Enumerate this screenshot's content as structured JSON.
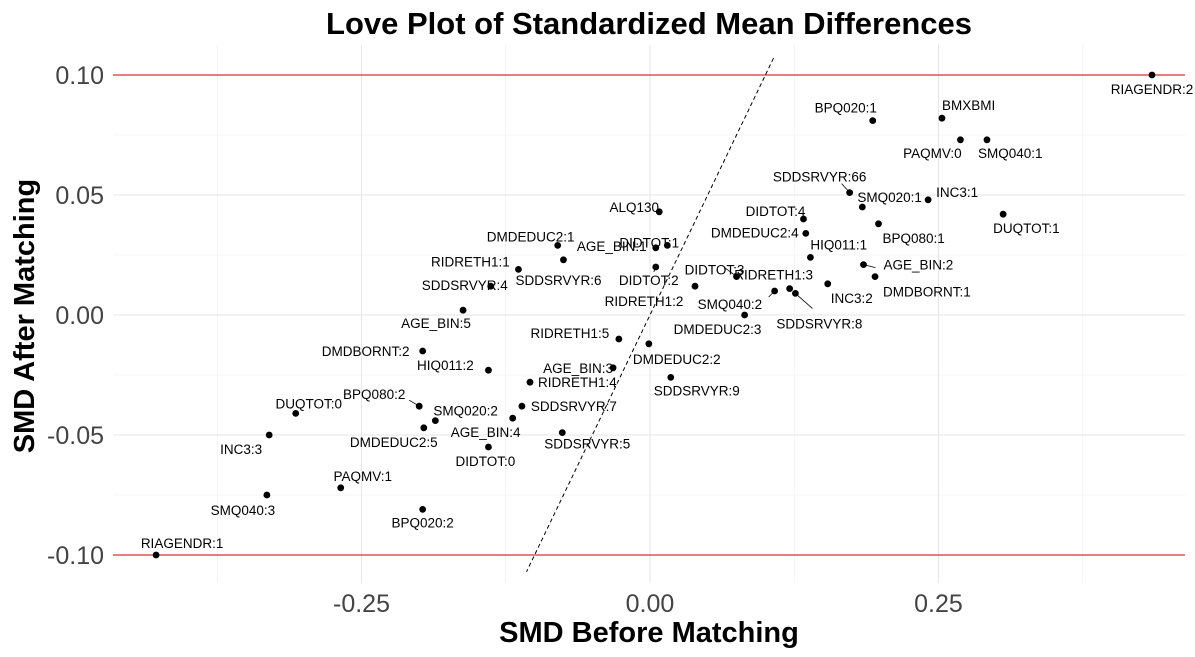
{
  "chart_data": {
    "type": "scatter",
    "title": "Love Plot of Standardized Mean Differences",
    "xlabel": "SMD Before Matching",
    "ylabel": "SMD After Matching",
    "xlim": [
      -0.46,
      0.465
    ],
    "ylim": [
      -0.107,
      0.107
    ],
    "x_ticks": [
      -0.25,
      0.0,
      0.25
    ],
    "x_tick_labels": [
      "-0.25",
      "0.00",
      "0.25"
    ],
    "y_ticks": [
      -0.1,
      -0.05,
      0.0,
      0.05,
      0.1
    ],
    "y_tick_labels": [
      "-0.10",
      "-0.05",
      "0.00",
      "0.05",
      "0.10"
    ],
    "grid": true,
    "reference_lines": {
      "horizontal": [
        0.1,
        -0.1
      ],
      "horizontal_color": "#cc0000",
      "diagonal": "y = x",
      "diagonal_style": "dashed"
    },
    "point_color": "#000000",
    "points": [
      {
        "label": "RIAGENDR:2",
        "x": 0.435,
        "y": 0.1
      },
      {
        "label": "BPQ020:1",
        "x": 0.193,
        "y": 0.081
      },
      {
        "label": "BMXBMI",
        "x": 0.253,
        "y": 0.082
      },
      {
        "label": "PAQMV:0",
        "x": 0.269,
        "y": 0.073
      },
      {
        "label": "SMQ040:1",
        "x": 0.292,
        "y": 0.073
      },
      {
        "label": "SDDSRVYR:66",
        "x": 0.173,
        "y": 0.051
      },
      {
        "label": "INC3:1",
        "x": 0.241,
        "y": 0.048
      },
      {
        "label": "SMQ020:1",
        "x": 0.184,
        "y": 0.045
      },
      {
        "label": "DUQTOT:1",
        "x": 0.306,
        "y": 0.042
      },
      {
        "label": "DIDTOT:4",
        "x": 0.133,
        "y": 0.04
      },
      {
        "label": "BPQ080:1",
        "x": 0.198,
        "y": 0.038
      },
      {
        "label": "DMDEDUC2:4",
        "x": 0.135,
        "y": 0.034
      },
      {
        "label": "HIQ011:1",
        "x": 0.139,
        "y": 0.024
      },
      {
        "label": "AGE_BIN:2",
        "x": 0.185,
        "y": 0.021
      },
      {
        "label": "DMDBORNT:1",
        "x": 0.195,
        "y": 0.016
      },
      {
        "label": "RIDRETH1:3",
        "x": 0.121,
        "y": 0.011
      },
      {
        "label": "INC3:2",
        "x": 0.154,
        "y": 0.013
      },
      {
        "label": "SDDSRVYR:8",
        "x": 0.126,
        "y": 0.009
      },
      {
        "label": "DIDTOT:3",
        "x": 0.075,
        "y": 0.016
      },
      {
        "label": "SMQ040:2",
        "x": 0.108,
        "y": 0.01
      },
      {
        "label": "DMDEDUC2:3",
        "x": 0.082,
        "y": 0.0
      },
      {
        "label": "ALQ130",
        "x": 0.008,
        "y": 0.043
      },
      {
        "label": "DIDTOT:1",
        "x": 0.015,
        "y": 0.029
      },
      {
        "label": "DMDEDUC2:1",
        "x": -0.08,
        "y": 0.029
      },
      {
        "label": "AGE_BIN:1",
        "x": 0.005,
        "y": 0.028
      },
      {
        "label": "DIDTOT:2",
        "x": 0.005,
        "y": 0.02
      },
      {
        "label": "RIDRETH1:1",
        "x": -0.114,
        "y": 0.019
      },
      {
        "label": "SDDSRVYR:6",
        "x": -0.075,
        "y": 0.023
      },
      {
        "label": "SDDSRVYR:4",
        "x": -0.138,
        "y": 0.012
      },
      {
        "label": "RIDRETH1:2",
        "x": 0.039,
        "y": 0.012
      },
      {
        "label": "AGE_BIN:5",
        "x": -0.162,
        "y": 0.002
      },
      {
        "label": "RIDRETH1:5",
        "x": -0.027,
        "y": -0.01
      },
      {
        "label": "DMDBORNT:2",
        "x": -0.197,
        "y": -0.015
      },
      {
        "label": "DMDEDUC2:2",
        "x": -0.001,
        "y": -0.012
      },
      {
        "label": "AGE_BIN:3",
        "x": -0.032,
        "y": -0.022
      },
      {
        "label": "HIQ011:2",
        "x": -0.14,
        "y": -0.023
      },
      {
        "label": "SDDSRVYR:9",
        "x": 0.018,
        "y": -0.026
      },
      {
        "label": "RIDRETH1:4",
        "x": -0.104,
        "y": -0.028
      },
      {
        "label": "BPQ080:2",
        "x": -0.2,
        "y": -0.038
      },
      {
        "label": "DUQTOT:0",
        "x": -0.307,
        "y": -0.041
      },
      {
        "label": "SDDSRVYR:7",
        "x": -0.111,
        "y": -0.038
      },
      {
        "label": "SMQ020:2",
        "x": -0.186,
        "y": -0.044
      },
      {
        "label": "AGE_BIN:4",
        "x": -0.119,
        "y": -0.043
      },
      {
        "label": "DMDEDUC2:5",
        "x": -0.196,
        "y": -0.047
      },
      {
        "label": "SDDSRVYR:5",
        "x": -0.076,
        "y": -0.049
      },
      {
        "label": "INC3:3",
        "x": -0.33,
        "y": -0.05
      },
      {
        "label": "DIDTOT:0",
        "x": -0.14,
        "y": -0.055
      },
      {
        "label": "PAQMV:1",
        "x": -0.268,
        "y": -0.072
      },
      {
        "label": "SMQ040:3",
        "x": -0.332,
        "y": -0.075
      },
      {
        "label": "BPQ020:2",
        "x": -0.197,
        "y": -0.081
      },
      {
        "label": "RIAGENDR:1",
        "x": -0.428,
        "y": -0.1
      }
    ]
  }
}
